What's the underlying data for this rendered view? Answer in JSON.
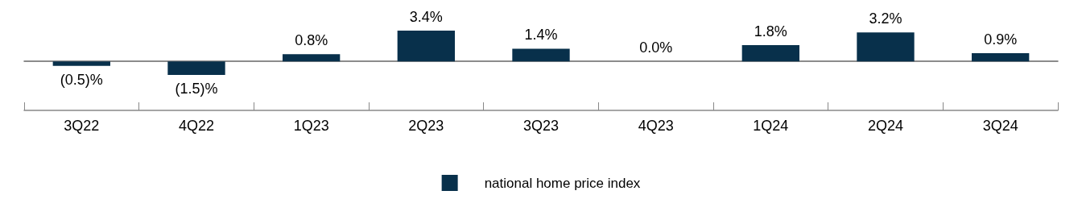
{
  "chart_data": {
    "type": "bar",
    "categories": [
      "3Q22",
      "4Q22",
      "1Q23",
      "2Q23",
      "3Q23",
      "4Q23",
      "1Q24",
      "2Q24",
      "3Q24"
    ],
    "series": [
      {
        "name": "national home price index",
        "color": "#08304b",
        "values": [
          -0.5,
          -1.5,
          0.8,
          3.4,
          1.4,
          0.0,
          1.8,
          3.2,
          0.9
        ],
        "value_labels": [
          "(0.5)%",
          "(1.5)%",
          "0.8%",
          "3.4%",
          "1.4%",
          "0.0%",
          "1.8%",
          "3.2%",
          "0.9%"
        ]
      }
    ],
    "legend": "bottom",
    "grid": false
  }
}
